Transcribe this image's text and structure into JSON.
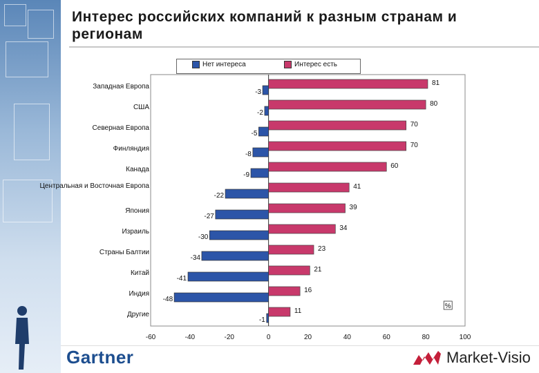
{
  "page": {
    "title": "Интерес российских компаний к разным странам и регионам"
  },
  "legend": {
    "no_interest": "Нет интереса",
    "interest": "Интерес есть"
  },
  "colors": {
    "no_interest": "#2c55a8",
    "interest": "#c8396b",
    "gartner": "#1d4e8f",
    "mv_logo": "#c41f3a"
  },
  "chart_data": {
    "type": "bar",
    "orientation": "horizontal",
    "categories": [
      "Западная Европа",
      "США",
      "Северная Европа",
      "Финляндия",
      "Канада",
      "Центральная и Восточная Европа",
      "Япония",
      "Израиль",
      "Страны Балтии",
      "Китай",
      "Индия",
      "Другие"
    ],
    "series": [
      {
        "name": "Нет интереса",
        "values": [
          -3,
          -2,
          -5,
          -8,
          -9,
          -22,
          -27,
          -30,
          -34,
          -41,
          -48,
          -1
        ]
      },
      {
        "name": "Интерес есть",
        "values": [
          81,
          80,
          70,
          70,
          60,
          41,
          39,
          34,
          23,
          21,
          16,
          11
        ]
      }
    ],
    "xlim": [
      -60,
      100
    ],
    "xticks": [
      -60,
      -40,
      -20,
      0,
      20,
      40,
      60,
      80,
      100
    ],
    "unit_label": "%",
    "grid": false,
    "legend_position": "top"
  },
  "footer": {
    "left_logo": "Gartner",
    "right_logo": "Market-Visio"
  }
}
